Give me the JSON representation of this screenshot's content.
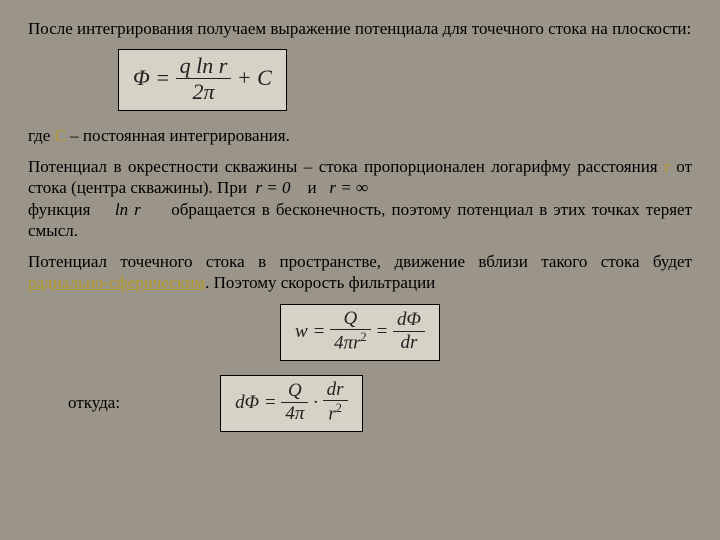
{
  "colors": {
    "background": "#9a9489",
    "formula_bg": "#d6d2c5",
    "formula_border": "#000000",
    "text": "#000000",
    "highlight": "#b39a2e"
  },
  "typography": {
    "body_font": "Times New Roman",
    "body_size_pt": 17,
    "formula_size_pt": 22
  },
  "p1": "После интегрирования получаем выражение потенциала для точечного стока на плоскости:",
  "formula1": {
    "lhs": "Φ",
    "eq": " = ",
    "frac_num": "q ln r",
    "frac_den": "2π",
    "tail": " + C"
  },
  "p2_a": "где ",
  "p2_c": "С",
  "p2_b": " – постоянная интегрирования.",
  "p3_a": "Потенциал в окрестности скважины – стока пропорционален логарифму расстояния ",
  "p3_r": "r",
  "p3_b": " от стока (центра скважины). При ",
  "p3_m1": "r = 0",
  "p3_c": "    и  ",
  "p3_m2": "r = ∞",
  "p3_d": " функция ",
  "p3_m3": "ln r",
  "p3_e": " обращается в бесконечность, поэтому потенциал в этих точках теряет смысл.",
  "p4_a": "Потенциал точечного стока в пространстве, движение вблизи такого стока будет ",
  "p4_u": "радиально-сферическим",
  "p4_b": ". Поэтому скорость фильтрации",
  "formula2": {
    "lhs": "w",
    "eq": " = ",
    "f1_num": "Q",
    "f1_den_a": "4π",
    "f1_den_r": "r",
    "f1_den_sup": "2",
    "mid": " = ",
    "f2_num": "dΦ",
    "f2_den": "dr"
  },
  "otkuda": "откуда:",
  "formula3": {
    "lhs": "dΦ",
    "eq": " = ",
    "f1_num": "Q",
    "f1_den": "4π",
    "dot": " · ",
    "f2_num": "dr",
    "f2_den_r": "r",
    "f2_den_sup": "2"
  }
}
